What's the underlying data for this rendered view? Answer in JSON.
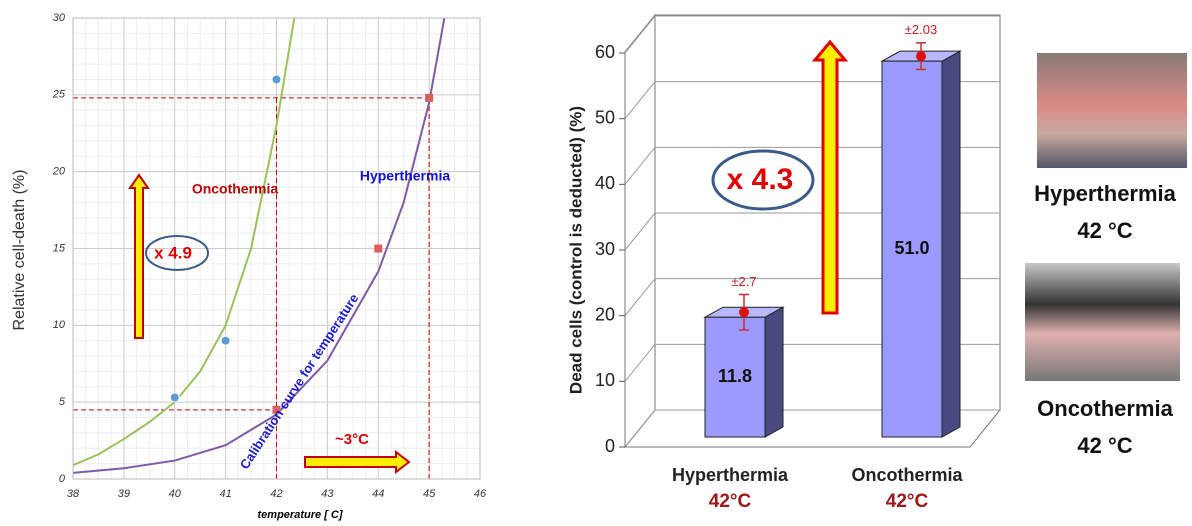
{
  "chart_data": [
    {
      "type": "line",
      "xlabel": "temperature [ C]",
      "ylabel": "Relative cell-death (%)",
      "xlim": [
        38,
        46
      ],
      "ylim": [
        0,
        30
      ],
      "xticks": [
        38,
        39,
        40,
        41,
        42,
        43,
        44,
        45,
        46
      ],
      "yticks": [
        0,
        5,
        10,
        15,
        20,
        25,
        30
      ],
      "grid": true,
      "series": [
        {
          "name": "Oncothermia",
          "label_color": "#c00000",
          "color": "#9bc25a",
          "x": [
            38,
            38.5,
            39,
            39.5,
            40,
            40.5,
            41,
            41.5,
            42,
            42.2,
            42.35
          ],
          "values": [
            0.9,
            1.6,
            2.6,
            3.7,
            5,
            7,
            10,
            15,
            23,
            27,
            30
          ]
        },
        {
          "name": "Hyperthermia",
          "label_color": "#1010e0",
          "color": "#7d5ba6",
          "x": [
            38,
            39,
            40,
            41,
            42,
            43,
            44,
            44.5,
            45,
            45.3
          ],
          "values": [
            0.4,
            0.7,
            1.2,
            2.2,
            4.2,
            7.7,
            13.5,
            18,
            24.5,
            30
          ]
        }
      ],
      "points": [
        {
          "marker": "circle",
          "color": "#5b9bd5",
          "x": [
            40,
            41,
            42
          ],
          "values": [
            5.3,
            9,
            26
          ]
        },
        {
          "marker": "square",
          "color": "#d9605a",
          "x": [
            42,
            44,
            45
          ],
          "values": [
            4.5,
            15,
            24.8
          ]
        }
      ],
      "annotations": {
        "ratio": "x 4.9",
        "shift": "~3°C",
        "curve": "Calibration curve for temperature"
      }
    },
    {
      "type": "bar3d",
      "ylabel": "Dead cells (control is deducted) (%)",
      "ylim": [
        0,
        60
      ],
      "yticks": [
        0,
        10,
        20,
        30,
        40,
        50,
        60
      ],
      "categories": [
        "Hyperthermia",
        "Oncothermia"
      ],
      "category_temps": [
        "42°C",
        "42°C"
      ],
      "values": [
        19,
        58
      ],
      "color": "#9a9aff",
      "errors": [
        2.7,
        2.03
      ],
      "error_labels": [
        "±2.7",
        "±2.03"
      ],
      "inner_labels": [
        "11.8",
        "51.0"
      ],
      "annotations": {
        "ratio": "x 4.3"
      }
    }
  ],
  "photos": [
    {
      "caption": "Hyperthermia",
      "temperature": "42 °C"
    },
    {
      "caption": "Oncothermia",
      "temperature": "42 °C"
    }
  ]
}
